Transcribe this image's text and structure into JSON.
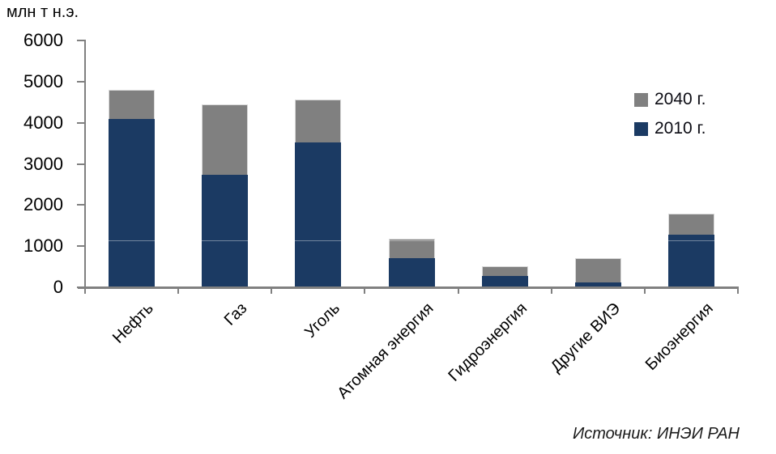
{
  "chart": {
    "y_axis_title": "млн т н.э.",
    "source": "Источник: ИНЭИ РАН"
  },
  "chart_data": {
    "type": "bar",
    "title": "",
    "ylabel": "млн т н.э.",
    "xlabel": "",
    "categories": [
      "Нефть",
      "Газ",
      "Уголь",
      "Атомная энергия",
      "Гидроэнергия",
      "Другие ВИЭ",
      "Биоэнергия"
    ],
    "series": [
      {
        "name": "2010 г.",
        "color": "#1B3A63",
        "values": [
          4100,
          2730,
          3520,
          710,
          280,
          110,
          1280
        ]
      },
      {
        "name": "2040 г.",
        "color": "#808080",
        "values": [
          4800,
          4440,
          4570,
          1180,
          510,
          700,
          1790
        ]
      }
    ],
    "stacking": "overlap: 2040 total drawn behind, 2010 in front; visible gray = growth 2010→2040",
    "legend_order": [
      "2040 г.",
      "2010 г."
    ],
    "legend_position": "upper right",
    "ylim": [
      0,
      6000
    ],
    "ytick_step": 1000,
    "grid": false,
    "faint_inner_line_value": 1140,
    "axis_color": "#808080",
    "text_color": "#000000"
  }
}
